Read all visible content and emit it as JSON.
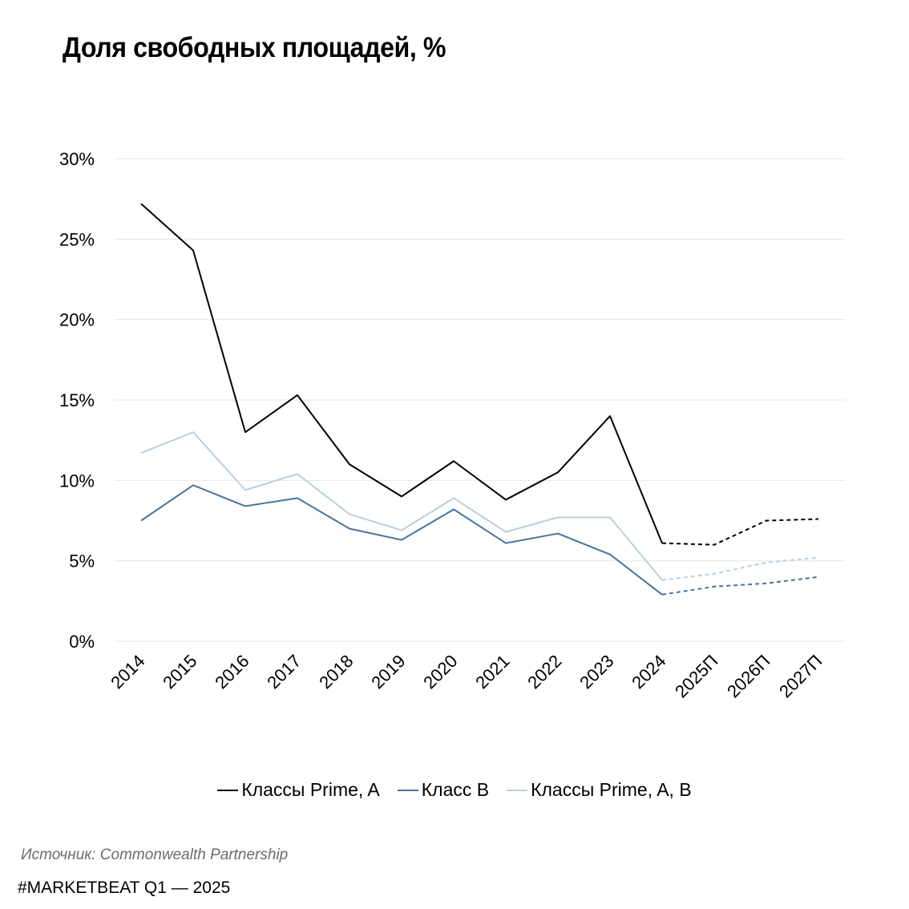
{
  "title": "Доля свободных площадей, %",
  "source": "Источник: Commonwealth Partnership",
  "footer": "#MARKETBEAT Q1  —  2025",
  "chart_data": {
    "type": "line",
    "title": "Доля свободных площадей, %",
    "categories": [
      "2014",
      "2015",
      "2016",
      "2017",
      "2018",
      "2019",
      "2020",
      "2021",
      "2022",
      "2023",
      "2024",
      "2025П",
      "2026П",
      "2027П"
    ],
    "forecast_from_index": 10,
    "y_ticks": [
      "0%",
      "5%",
      "10%",
      "15%",
      "20%",
      "25%",
      "30%"
    ],
    "ylim": [
      0,
      30
    ],
    "grid": true,
    "legend_position": "bottom",
    "series": [
      {
        "name": "Классы Prime, A",
        "color": "#000000",
        "values": [
          27.2,
          24.3,
          13.0,
          15.3,
          11.0,
          9.0,
          11.2,
          8.8,
          10.5,
          14.0,
          6.1,
          6.0,
          7.5,
          7.6
        ]
      },
      {
        "name": "Класс B",
        "color": "#44749d",
        "values": [
          7.5,
          9.7,
          8.4,
          8.9,
          7.0,
          6.3,
          8.2,
          6.1,
          6.7,
          5.4,
          2.9,
          3.4,
          3.6,
          4.0
        ]
      },
      {
        "name": "Классы Prime, A, B",
        "color": "#b9cfdf",
        "values": [
          11.7,
          13.0,
          9.4,
          10.4,
          7.9,
          6.9,
          8.9,
          6.8,
          7.7,
          7.7,
          3.8,
          4.2,
          4.9,
          5.2
        ]
      }
    ]
  }
}
